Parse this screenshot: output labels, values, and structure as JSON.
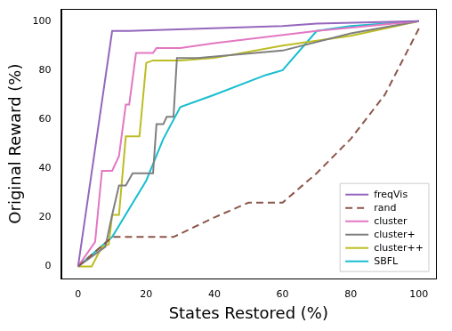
{
  "chart_data": {
    "type": "line",
    "x_label": "States Restored (%)",
    "y_label": "Original Reward (%)",
    "xlim": [
      -5,
      105
    ],
    "xticks": [
      0,
      20,
      40,
      60,
      80,
      100
    ],
    "ylim": [
      -5,
      105
    ],
    "yticks": [
      0,
      20,
      40,
      60,
      80,
      100
    ],
    "grid": false,
    "legend": "lower right",
    "series": [
      {
        "name": "freqVis",
        "color": "#9467bd",
        "line_style": "solid",
        "x": [
          0,
          10,
          15,
          60,
          70,
          100
        ],
        "values": [
          0,
          96,
          96,
          98,
          99,
          100
        ]
      },
      {
        "name": "rand",
        "color": "#8c564b",
        "line_style": "dashed",
        "x": [
          0,
          10,
          28,
          40,
          45,
          50,
          60,
          70,
          80,
          90,
          100
        ],
        "values": [
          0,
          12,
          12,
          20,
          23,
          26,
          26,
          38,
          52,
          70,
          97
        ]
      },
      {
        "name": "cluster",
        "color": "#e377c2",
        "line_style": "solid",
        "x": [
          0,
          5,
          7,
          10,
          12,
          14,
          15,
          17,
          22,
          23,
          30,
          40,
          70,
          100
        ],
        "values": [
          0,
          10,
          39,
          39,
          45,
          66,
          66,
          87,
          87,
          89,
          89,
          91,
          96,
          100
        ]
      },
      {
        "name": "cluster+",
        "color": "#7f7f7f",
        "line_style": "solid",
        "x": [
          0,
          8,
          10,
          12,
          14,
          16,
          22,
          23,
          25,
          26,
          28,
          29,
          35,
          60,
          80,
          100
        ],
        "values": [
          0,
          8,
          21,
          33,
          33,
          38,
          38,
          58,
          58,
          61,
          61,
          85,
          85,
          88,
          95,
          100
        ]
      },
      {
        "name": "cluster++",
        "color": "#bcbd22",
        "line_style": "solid",
        "x": [
          0,
          4,
          7,
          9,
          10,
          12,
          14,
          18,
          20,
          22,
          30,
          40,
          60,
          80,
          100
        ],
        "values": [
          0,
          0,
          8,
          9,
          21,
          21,
          53,
          53,
          83,
          84,
          84,
          85,
          90,
          94,
          100
        ]
      },
      {
        "name": "SBFL",
        "color": "#17becf",
        "line_style": "solid",
        "x": [
          0,
          10,
          20,
          25,
          30,
          40,
          55,
          60,
          70,
          80,
          100
        ],
        "values": [
          0,
          12,
          35,
          52,
          65,
          70,
          78,
          80,
          96,
          98,
          100
        ]
      }
    ]
  }
}
